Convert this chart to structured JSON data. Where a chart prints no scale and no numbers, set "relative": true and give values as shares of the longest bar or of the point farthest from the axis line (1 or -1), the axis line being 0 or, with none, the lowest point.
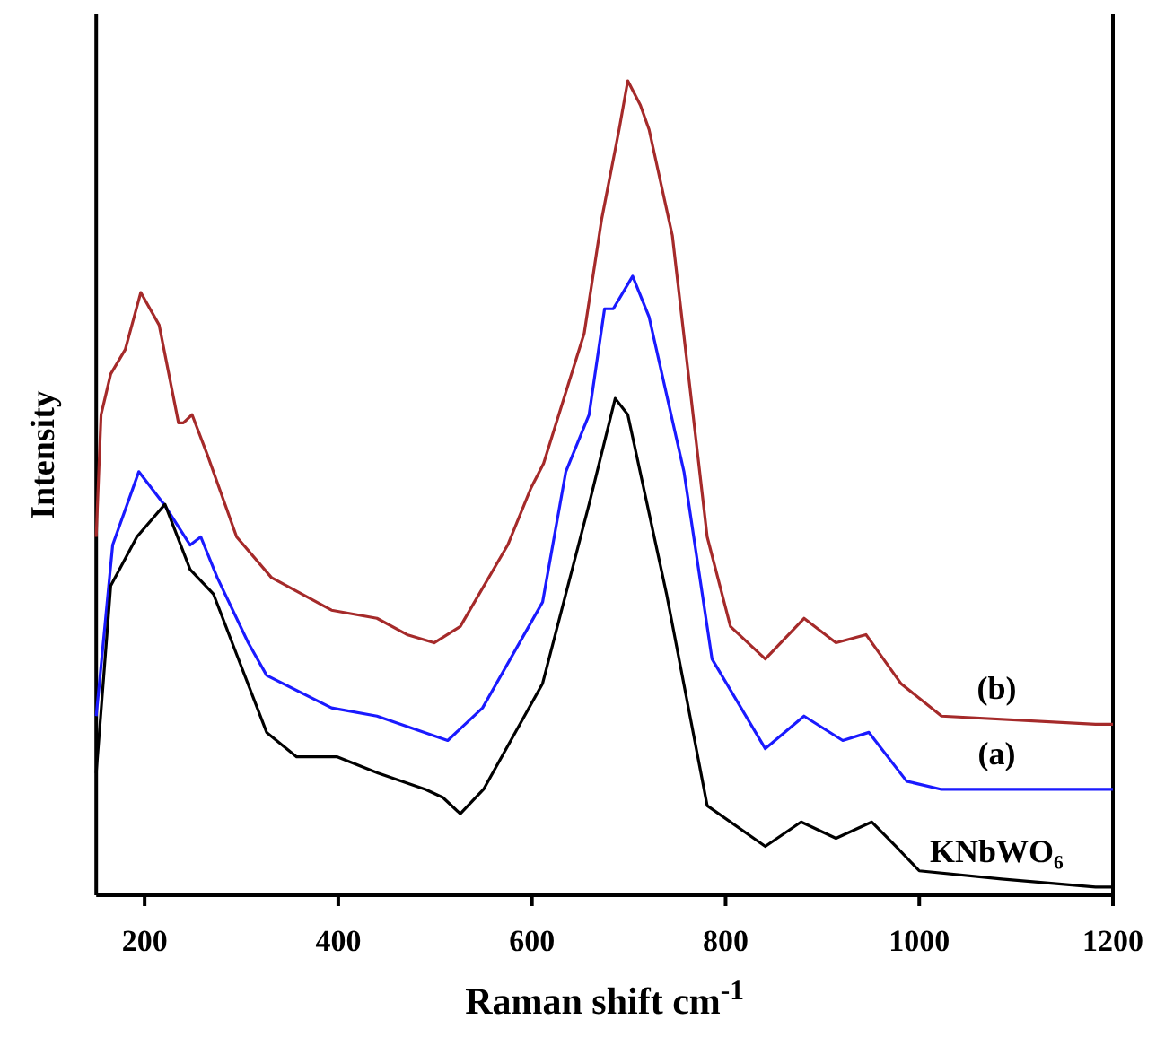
{
  "chart_data": {
    "type": "line",
    "relative": true,
    "xlabel": "Raman shift cm$^{-1}$",
    "ylabel": "Intensity",
    "xlim": [
      150,
      1200
    ],
    "xticks": [
      200,
      400,
      600,
      800,
      1000,
      1200
    ],
    "legend": false,
    "grid": false,
    "marker": "none",
    "line_style": "solid",
    "series": [
      {
        "name": "(b)",
        "color": "#a52a2a",
        "x": [
          150,
          155,
          165,
          180,
          196,
          215,
          235,
          240,
          249,
          265,
          295,
          331,
          393,
          440,
          471,
          499,
          526,
          575,
          599,
          612,
          654,
          672,
          690,
          699,
          712,
          721,
          745,
          781,
          805,
          841,
          881,
          914,
          945,
          981,
          1023,
          1182,
          1200
        ],
        "values": [
          0.44,
          0.59,
          0.64,
          0.67,
          0.74,
          0.7,
          0.58,
          0.58,
          0.59,
          0.54,
          0.44,
          0.39,
          0.35,
          0.34,
          0.32,
          0.31,
          0.33,
          0.43,
          0.5,
          0.53,
          0.69,
          0.83,
          0.94,
          1.0,
          0.97,
          0.94,
          0.81,
          0.44,
          0.33,
          0.29,
          0.34,
          0.31,
          0.32,
          0.26,
          0.22,
          0.21,
          0.21
        ]
      },
      {
        "name": "(a)",
        "color": "#1a1aff",
        "x": [
          150,
          167,
          194,
          220,
          247,
          258,
          275,
          307,
          326,
          393,
          440,
          513,
          549,
          611,
          635,
          659,
          675,
          684,
          704,
          721,
          757,
          786,
          841,
          881,
          921,
          948,
          987,
          1023,
          1176,
          1200
        ],
        "values": [
          0.22,
          0.43,
          0.52,
          0.48,
          0.43,
          0.44,
          0.39,
          0.31,
          0.27,
          0.23,
          0.22,
          0.19,
          0.23,
          0.36,
          0.52,
          0.59,
          0.72,
          0.72,
          0.76,
          0.71,
          0.52,
          0.29,
          0.18,
          0.22,
          0.19,
          0.2,
          0.14,
          0.13,
          0.13,
          0.13
        ]
      },
      {
        "name": "KNbWO₆",
        "color": "#000000",
        "x": [
          150,
          165,
          192,
          221,
          247,
          271,
          326,
          357,
          399,
          441,
          490,
          508,
          526,
          550,
          611,
          659,
          686,
          699,
          739,
          781,
          841,
          878,
          914,
          951,
          976,
          1000,
          1085,
          1182,
          1200
        ],
        "values": [
          0.15,
          0.38,
          0.44,
          0.48,
          0.4,
          0.37,
          0.2,
          0.17,
          0.17,
          0.15,
          0.13,
          0.12,
          0.1,
          0.13,
          0.26,
          0.48,
          0.61,
          0.59,
          0.37,
          0.11,
          0.06,
          0.09,
          0.07,
          0.09,
          0.06,
          0.03,
          0.02,
          0.01,
          0.01
        ]
      }
    ]
  }
}
